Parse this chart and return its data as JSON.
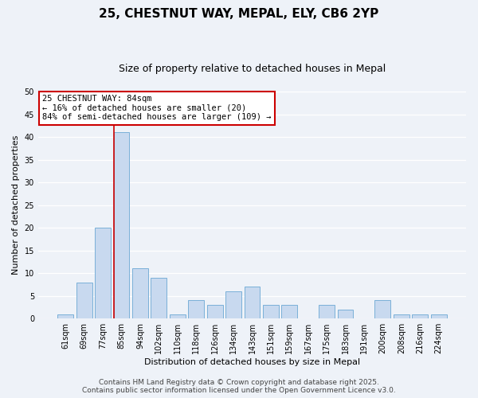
{
  "title": "25, CHESTNUT WAY, MEPAL, ELY, CB6 2YP",
  "subtitle": "Size of property relative to detached houses in Mepal",
  "xlabel": "Distribution of detached houses by size in Mepal",
  "ylabel": "Number of detached properties",
  "bar_labels": [
    "61sqm",
    "69sqm",
    "77sqm",
    "85sqm",
    "94sqm",
    "102sqm",
    "110sqm",
    "118sqm",
    "126sqm",
    "134sqm",
    "143sqm",
    "151sqm",
    "159sqm",
    "167sqm",
    "175sqm",
    "183sqm",
    "191sqm",
    "200sqm",
    "208sqm",
    "216sqm",
    "224sqm"
  ],
  "bar_values": [
    1,
    8,
    20,
    41,
    11,
    9,
    1,
    4,
    3,
    6,
    7,
    3,
    3,
    0,
    3,
    2,
    0,
    4,
    1,
    1,
    1
  ],
  "bar_color": "#c8d9ef",
  "bar_edge_color": "#7ab0d8",
  "vline_bar_idx": 3,
  "vline_color": "#cc0000",
  "ylim": [
    0,
    50
  ],
  "yticks": [
    0,
    5,
    10,
    15,
    20,
    25,
    30,
    35,
    40,
    45,
    50
  ],
  "annotation_title": "25 CHESTNUT WAY: 84sqm",
  "annotation_line1": "← 16% of detached houses are smaller (20)",
  "annotation_line2": "84% of semi-detached houses are larger (109) →",
  "annotation_box_color": "#ffffff",
  "annotation_box_edge": "#cc0000",
  "footer_line1": "Contains HM Land Registry data © Crown copyright and database right 2025.",
  "footer_line2": "Contains public sector information licensed under the Open Government Licence v3.0.",
  "bg_color": "#eef2f8",
  "grid_color": "#ffffff",
  "title_fontsize": 11,
  "subtitle_fontsize": 9,
  "axis_label_fontsize": 8,
  "tick_fontsize": 7,
  "annotation_fontsize": 7.5,
  "footer_fontsize": 6.5
}
